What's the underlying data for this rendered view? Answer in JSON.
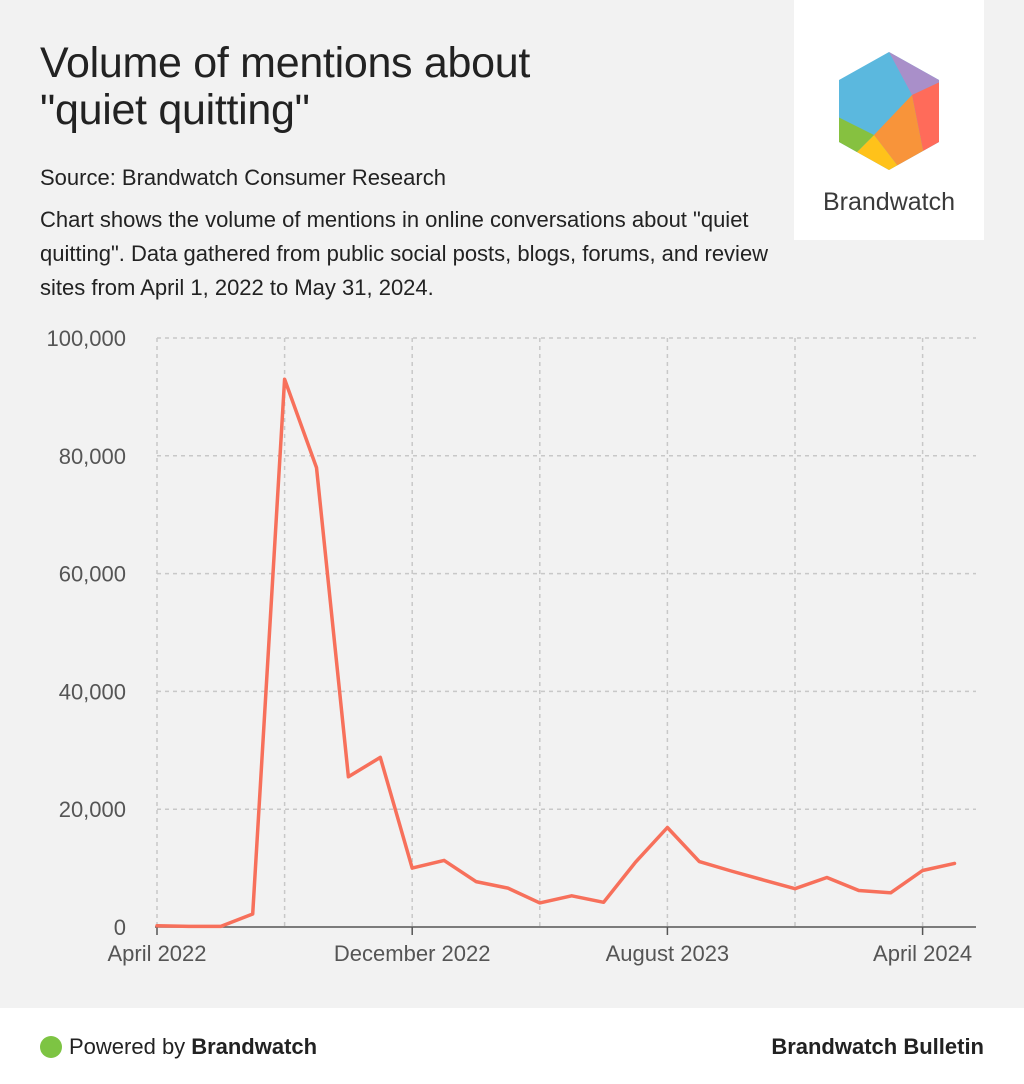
{
  "header": {
    "title_line1": "Volume of mentions about",
    "title_line2": "\"quiet quitting\"",
    "source": "Source: Brandwatch Consumer Research",
    "description": "Chart shows the volume of mentions in online conversations about \"quiet quitting\". Data gathered from public social posts, blogs, forums, and review sites from April 1, 2022 to May 31, 2024."
  },
  "logo": {
    "wordmark": "Brandwatch"
  },
  "footer": {
    "powered_prefix": "Powered by",
    "powered_brand": "Brandwatch",
    "right_text": "Brandwatch Bulletin"
  },
  "colors": {
    "line": "#f7705b",
    "grid": "#c8c8c8",
    "panel_bg": "#f2f2f2",
    "dot": "#7dc443"
  },
  "chart_data": {
    "type": "line",
    "x": [
      "2022-04",
      "2022-05",
      "2022-06",
      "2022-07",
      "2022-08",
      "2022-09",
      "2022-10",
      "2022-11",
      "2022-12",
      "2023-01",
      "2023-02",
      "2023-03",
      "2023-04",
      "2023-05",
      "2023-06",
      "2023-07",
      "2023-08",
      "2023-09",
      "2023-10",
      "2023-11",
      "2023-12",
      "2024-01",
      "2024-02",
      "2024-03",
      "2024-04",
      "2024-05"
    ],
    "series": [
      {
        "values": [
          200,
          100,
          100,
          2200,
          93000,
          78000,
          25500,
          28800,
          10000,
          11300,
          7700,
          6600,
          4100,
          5300,
          4200,
          11000,
          16900,
          11100,
          9500,
          8000,
          6500,
          8400,
          6200,
          5800,
          9600,
          10800
        ]
      }
    ],
    "x_ticks": [
      {
        "label": "April 2022",
        "index": 0
      },
      {
        "label": "December 2022",
        "index": 8
      },
      {
        "label": "August 2023",
        "index": 16
      },
      {
        "label": "April 2024",
        "index": 24
      }
    ],
    "vertical_grid_index": [
      0,
      4,
      8,
      12,
      16,
      20,
      24
    ],
    "y_ticks": [
      0,
      20000,
      40000,
      60000,
      80000,
      100000
    ],
    "y_tick_labels": [
      "0",
      "20,000",
      "40,000",
      "60,000",
      "80,000",
      "100,000"
    ],
    "ylim": [
      0,
      100000
    ],
    "grid": true,
    "legend": "none"
  }
}
